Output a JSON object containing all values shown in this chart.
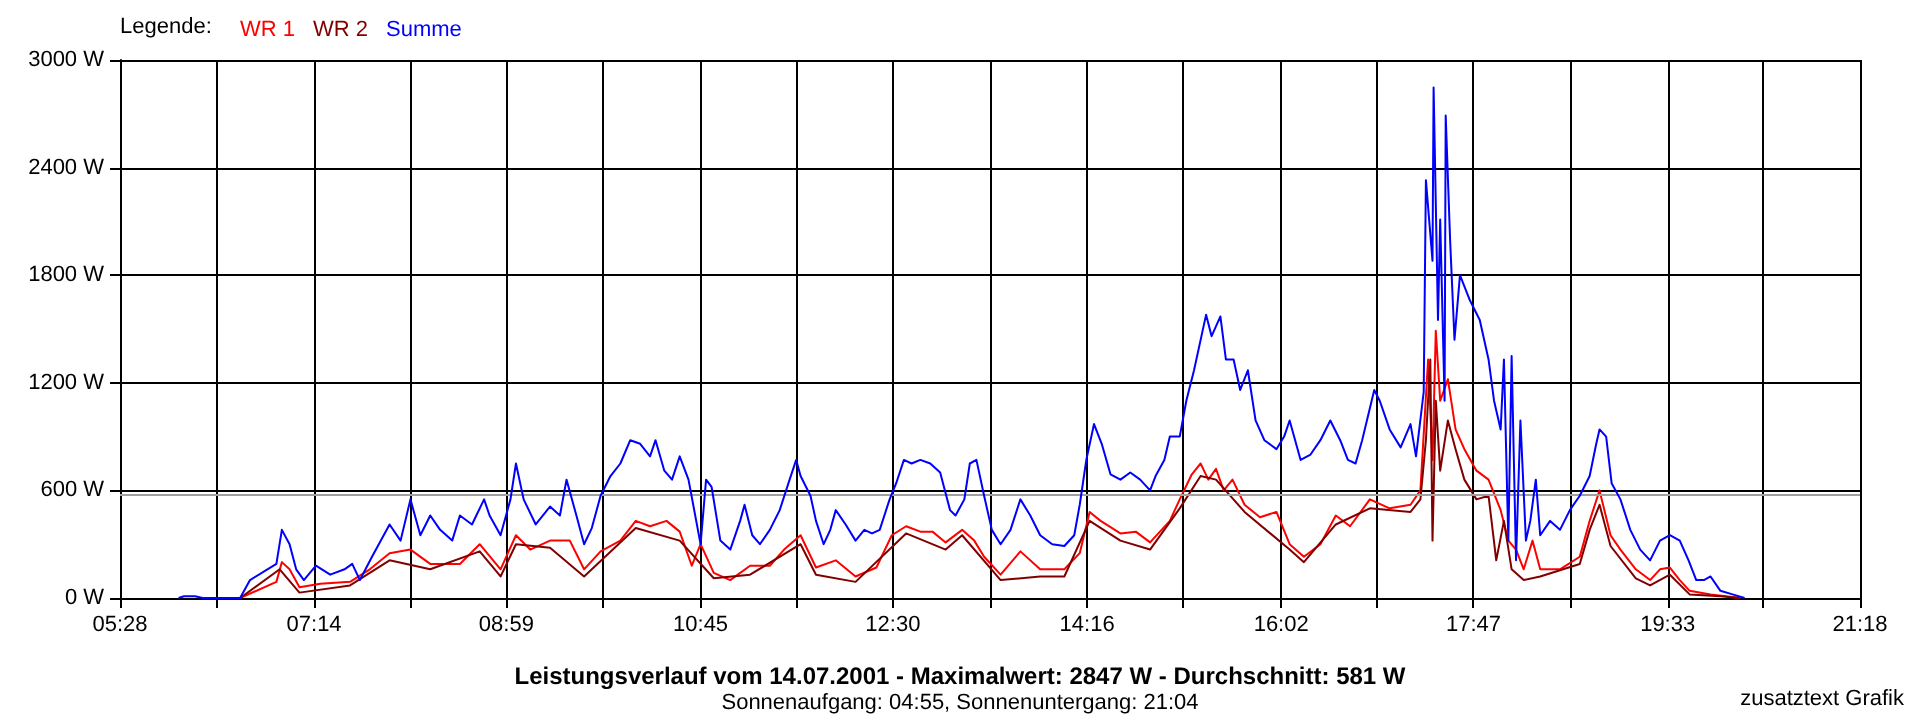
{
  "chart_data": {
    "type": "line",
    "title": "Leistungsverlauf vom 14.07.2001 - Maximalwert: 2847 W - Durchschnitt: 581 W",
    "subtitle": "Sonnenaufgang: 04:55, Sonnenuntergang: 21:04",
    "annotations": [
      "zusatztext Grafik"
    ],
    "legend_title": "Legende:",
    "legend": "top left",
    "grid": true,
    "marker": "none",
    "line_style": "solid",
    "xlim": [
      5.467,
      21.3
    ],
    "xticks": [
      {
        "value": 5.467,
        "label": "05:28"
      },
      {
        "value": 6.346,
        "label": null
      },
      {
        "value": 7.233,
        "label": "07:14"
      },
      {
        "value": 8.106,
        "label": null
      },
      {
        "value": 8.983,
        "label": "08:59"
      },
      {
        "value": 9.865,
        "label": null
      },
      {
        "value": 10.75,
        "label": "10:45"
      },
      {
        "value": 11.624,
        "label": null
      },
      {
        "value": 12.5,
        "label": "12:30"
      },
      {
        "value": 13.383,
        "label": null
      },
      {
        "value": 14.267,
        "label": "14:16"
      },
      {
        "value": 15.143,
        "label": null
      },
      {
        "value": 16.033,
        "label": "16:02"
      },
      {
        "value": 16.902,
        "label": null
      },
      {
        "value": 17.783,
        "label": "17:47"
      },
      {
        "value": 18.661,
        "label": null
      },
      {
        "value": 19.55,
        "label": "19:33"
      },
      {
        "value": 20.42,
        "label": null
      },
      {
        "value": 21.3,
        "label": "21:18"
      }
    ],
    "ylim": [
      0,
      3000
    ],
    "yticks": [
      {
        "value": 0,
        "label": "0 W"
      },
      {
        "value": 600,
        "label": "600 W"
      },
      {
        "value": 1200,
        "label": "1200 W"
      },
      {
        "value": 1800,
        "label": "1800 W"
      },
      {
        "value": 2400,
        "label": "2400 W"
      },
      {
        "value": 3000,
        "label": "3000 W"
      }
    ],
    "ref_lines": [
      {
        "axis": "y",
        "value": 581,
        "color": "#a0a0a0"
      }
    ],
    "series": [
      {
        "name": "WR 1",
        "color": "#ff0000",
        "x": [
          6.56,
          6.89,
          6.94,
          7.01,
          7.1,
          7.29,
          7.56,
          7.74,
          7.92,
          8.11,
          8.29,
          8.56,
          8.74,
          8.93,
          9.07,
          9.2,
          9.38,
          9.56,
          9.69,
          9.84,
          10.02,
          10.16,
          10.29,
          10.44,
          10.56,
          10.67,
          10.75,
          10.87,
          11.02,
          11.2,
          11.38,
          11.51,
          11.66,
          11.8,
          11.98,
          12.16,
          12.35,
          12.49,
          12.62,
          12.75,
          12.86,
          12.98,
          13.13,
          13.24,
          13.33,
          13.48,
          13.66,
          13.84,
          14.06,
          14.2,
          14.29,
          14.39,
          14.57,
          14.71,
          14.84,
          15.02,
          15.11,
          15.22,
          15.3,
          15.37,
          15.44,
          15.51,
          15.59,
          15.7,
          15.84,
          15.99,
          16.11,
          16.24,
          16.39,
          16.53,
          16.66,
          16.84,
          17.02,
          17.21,
          17.3,
          17.37,
          17.41,
          17.44,
          17.48,
          17.55,
          17.62,
          17.7,
          17.81,
          17.92,
          18.03,
          18.1,
          18.17,
          18.24,
          18.32,
          18.39,
          18.57,
          18.75,
          18.84,
          18.93,
          19.03,
          19.12,
          19.26,
          19.39,
          19.48,
          19.57,
          19.66,
          19.75,
          19.94,
          20.21
        ],
        "values": [
          0,
          90,
          200,
          160,
          60,
          80,
          90,
          160,
          250,
          270,
          190,
          190,
          300,
          160,
          350,
          270,
          320,
          320,
          160,
          260,
          320,
          430,
          400,
          430,
          370,
          180,
          300,
          140,
          100,
          180,
          180,
          270,
          350,
          170,
          210,
          120,
          170,
          350,
          400,
          370,
          370,
          310,
          380,
          320,
          230,
          130,
          260,
          160,
          160,
          250,
          480,
          430,
          360,
          370,
          310,
          430,
          550,
          690,
          750,
          660,
          720,
          600,
          660,
          520,
          450,
          480,
          300,
          230,
          300,
          460,
          400,
          550,
          500,
          520,
          600,
          1330,
          770,
          1490,
          1100,
          1220,
          940,
          830,
          710,
          660,
          490,
          320,
          270,
          160,
          320,
          160,
          160,
          230,
          430,
          600,
          350,
          270,
          160,
          100,
          160,
          170,
          100,
          40,
          20,
          0
        ]
      },
      {
        "name": "WR 2",
        "color": "#800000",
        "x": [
          6.56,
          6.92,
          7.1,
          7.56,
          7.92,
          8.29,
          8.74,
          8.93,
          9.07,
          9.38,
          9.69,
          10.16,
          10.56,
          10.87,
          11.2,
          11.66,
          11.8,
          12.16,
          12.62,
          12.98,
          13.13,
          13.48,
          13.84,
          14.06,
          14.29,
          14.57,
          14.84,
          15.11,
          15.3,
          15.44,
          15.7,
          16.11,
          16.24,
          16.53,
          16.84,
          17.21,
          17.3,
          17.35,
          17.39,
          17.41,
          17.44,
          17.48,
          17.55,
          17.62,
          17.7,
          17.81,
          17.92,
          17.99,
          18.06,
          18.13,
          18.24,
          18.39,
          18.75,
          18.84,
          18.93,
          19.03,
          19.26,
          19.39,
          19.57,
          19.75,
          20.03,
          20.21
        ],
        "values": [
          0,
          160,
          30,
          70,
          210,
          160,
          260,
          120,
          300,
          280,
          120,
          390,
          320,
          110,
          130,
          300,
          130,
          90,
          360,
          270,
          350,
          100,
          120,
          120,
          430,
          320,
          270,
          500,
          680,
          660,
          480,
          270,
          200,
          410,
          500,
          480,
          550,
          880,
          1330,
          320,
          1100,
          710,
          990,
          830,
          660,
          550,
          570,
          210,
          430,
          160,
          100,
          120,
          190,
          380,
          520,
          290,
          110,
          70,
          130,
          20,
          10,
          0
        ]
      },
      {
        "name": "Summe",
        "color": "#0000ff",
        "x": [
          6.0,
          6.05,
          6.15,
          6.22,
          6.56,
          6.65,
          6.89,
          6.94,
          7.01,
          7.07,
          7.14,
          7.25,
          7.38,
          7.51,
          7.58,
          7.65,
          7.76,
          7.92,
          8.02,
          8.11,
          8.2,
          8.29,
          8.38,
          8.49,
          8.56,
          8.67,
          8.78,
          8.83,
          8.93,
          9.02,
          9.07,
          9.14,
          9.25,
          9.38,
          9.47,
          9.53,
          9.62,
          9.69,
          9.76,
          9.84,
          9.93,
          10.02,
          10.11,
          10.2,
          10.29,
          10.34,
          10.42,
          10.49,
          10.56,
          10.64,
          10.75,
          10.8,
          10.85,
          10.93,
          11.02,
          11.11,
          11.15,
          11.22,
          11.29,
          11.38,
          11.47,
          11.56,
          11.62,
          11.66,
          11.75,
          11.8,
          11.87,
          11.93,
          11.98,
          12.07,
          12.16,
          12.24,
          12.31,
          12.38,
          12.47,
          12.53,
          12.6,
          12.67,
          12.75,
          12.84,
          12.93,
          13.02,
          13.07,
          13.15,
          13.2,
          13.26,
          13.33,
          13.4,
          13.48,
          13.57,
          13.66,
          13.75,
          13.84,
          13.95,
          14.06,
          14.15,
          14.2,
          14.26,
          14.33,
          14.4,
          14.48,
          14.57,
          14.66,
          14.75,
          14.84,
          14.89,
          14.97,
          15.02,
          15.11,
          15.17,
          15.24,
          15.35,
          15.4,
          15.48,
          15.53,
          15.6,
          15.66,
          15.73,
          15.8,
          15.88,
          15.99,
          16.06,
          16.11,
          16.21,
          16.3,
          16.39,
          16.48,
          16.57,
          16.64,
          16.71,
          16.77,
          16.88,
          16.93,
          17.02,
          17.12,
          17.21,
          17.26,
          17.33,
          17.35,
          17.41,
          17.42,
          17.46,
          17.48,
          17.52,
          17.53,
          17.57,
          17.61,
          17.66,
          17.75,
          17.84,
          17.92,
          17.97,
          18.03,
          18.06,
          18.1,
          18.13,
          18.17,
          18.21,
          18.26,
          18.3,
          18.35,
          18.39,
          18.48,
          18.57,
          18.66,
          18.75,
          18.84,
          18.9,
          18.93,
          18.99,
          19.04,
          19.12,
          19.21,
          19.3,
          19.39,
          19.48,
          19.57,
          19.66,
          19.74,
          19.81,
          19.88,
          19.94,
          20.03,
          20.14,
          20.25
        ],
        "values": [
          0,
          10,
          10,
          0,
          0,
          100,
          190,
          380,
          300,
          160,
          100,
          180,
          130,
          160,
          190,
          100,
          230,
          410,
          320,
          550,
          350,
          460,
          380,
          320,
          460,
          410,
          550,
          460,
          350,
          550,
          750,
          550,
          410,
          510,
          460,
          660,
          460,
          300,
          390,
          570,
          680,
          750,
          880,
          860,
          790,
          880,
          710,
          660,
          790,
          660,
          300,
          660,
          620,
          320,
          270,
          430,
          520,
          350,
          300,
          380,
          490,
          660,
          770,
          680,
          570,
          430,
          300,
          380,
          490,
          410,
          320,
          380,
          360,
          380,
          550,
          640,
          770,
          750,
          770,
          750,
          700,
          490,
          460,
          550,
          750,
          770,
          570,
          380,
          300,
          380,
          550,
          460,
          350,
          300,
          290,
          350,
          520,
          770,
          970,
          860,
          690,
          660,
          700,
          660,
          600,
          680,
          770,
          900,
          900,
          1100,
          1270,
          1580,
          1460,
          1570,
          1330,
          1330,
          1160,
          1270,
          990,
          880,
          830,
          900,
          990,
          770,
          800,
          880,
          990,
          880,
          770,
          750,
          880,
          1160,
          1100,
          940,
          840,
          970,
          790,
          1150,
          2330,
          1880,
          2847,
          1550,
          2110,
          1100,
          2690,
          2000,
          1440,
          1800,
          1660,
          1550,
          1330,
          1100,
          940,
          1330,
          320,
          1350,
          210,
          990,
          320,
          430,
          660,
          350,
          430,
          380,
          490,
          570,
          680,
          860,
          940,
          900,
          640,
          550,
          380,
          270,
          210,
          320,
          350,
          320,
          210,
          100,
          100,
          120,
          40,
          20,
          0
        ]
      }
    ]
  }
}
